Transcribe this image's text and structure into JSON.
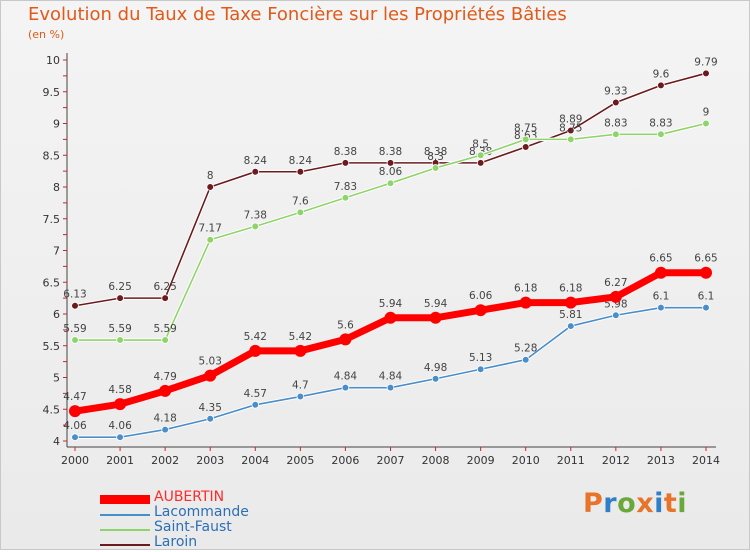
{
  "title": "Evolution du Taux de Taxe Foncière sur les Propriétés Bâties",
  "subtitle": "(en %)",
  "logo_text": "Proxiti",
  "chart_data": {
    "type": "line",
    "title": "Evolution du Taux de Taxe Foncière sur les Propriétés Bâties",
    "ylabel": "(en %)",
    "xlabel": "",
    "x": [
      2000,
      2001,
      2002,
      2003,
      2004,
      2005,
      2006,
      2007,
      2008,
      2009,
      2010,
      2011,
      2012,
      2013,
      2014
    ],
    "ylim": [
      4,
      10
    ],
    "yticks": [
      "4",
      "4.5",
      "5",
      "5.5",
      "6",
      "6.5",
      "7",
      "7.5",
      "8",
      "8.5",
      "9",
      "9.5",
      "10"
    ],
    "grid": false,
    "legend_position": "bottom-left",
    "series": [
      {
        "name": "Laroin",
        "color": "#6b1a1e",
        "values": [
          6.13,
          6.25,
          6.25,
          8,
          8.24,
          8.24,
          8.38,
          8.38,
          8.38,
          8.38,
          8.63,
          8.89,
          9.33,
          9.6,
          9.79
        ],
        "labels": [
          "6.13",
          "6.25",
          "6.25",
          "8",
          "8.24",
          "8.24",
          "8.38",
          "8.38",
          "8.38",
          "8.38",
          "8.63",
          "8.89",
          "9.33",
          "9.6",
          "9.79"
        ]
      },
      {
        "name": "Saint-Faust",
        "color": "#8fd46a",
        "values": [
          5.59,
          5.59,
          5.59,
          7.17,
          7.38,
          7.6,
          7.83,
          8.06,
          8.3,
          8.5,
          8.75,
          8.75,
          8.83,
          8.83,
          9
        ],
        "labels": [
          "5.59",
          "5.59",
          "5.59",
          "7.17",
          "7.38",
          "7.6",
          "7.83",
          "8.06",
          "8.3",
          "8.5",
          "8.75",
          "8.75",
          "8.83",
          "8.83",
          "9"
        ]
      },
      {
        "name": "Lacommande",
        "color": "#4a8ec9",
        "values": [
          4.06,
          4.06,
          4.18,
          4.35,
          4.57,
          4.7,
          4.84,
          4.84,
          4.98,
          5.13,
          5.28,
          5.81,
          5.98,
          6.1,
          6.1
        ],
        "labels": [
          "4.06",
          "4.06",
          "4.18",
          "4.35",
          "4.57",
          "4.7",
          "4.84",
          "4.84",
          "4.98",
          "5.13",
          "5.28",
          "5.81",
          "5.98",
          "6.1",
          "6.1"
        ]
      },
      {
        "name": "AUBERTIN",
        "color": "#ff0000",
        "values": [
          4.47,
          4.58,
          4.79,
          5.03,
          5.42,
          5.42,
          5.6,
          5.94,
          5.94,
          6.06,
          6.18,
          6.18,
          6.27,
          6.65,
          6.65
        ],
        "labels": [
          "4.47",
          "4.58",
          "4.79",
          "5.03",
          "5.42",
          "5.42",
          "5.6",
          "5.94",
          "5.94",
          "6.06",
          "6.18",
          "6.18",
          "6.27",
          "6.65",
          "6.65"
        ]
      }
    ],
    "legend": [
      "AUBERTIN",
      "Lacommande",
      "Saint-Faust",
      "Laroin"
    ]
  }
}
